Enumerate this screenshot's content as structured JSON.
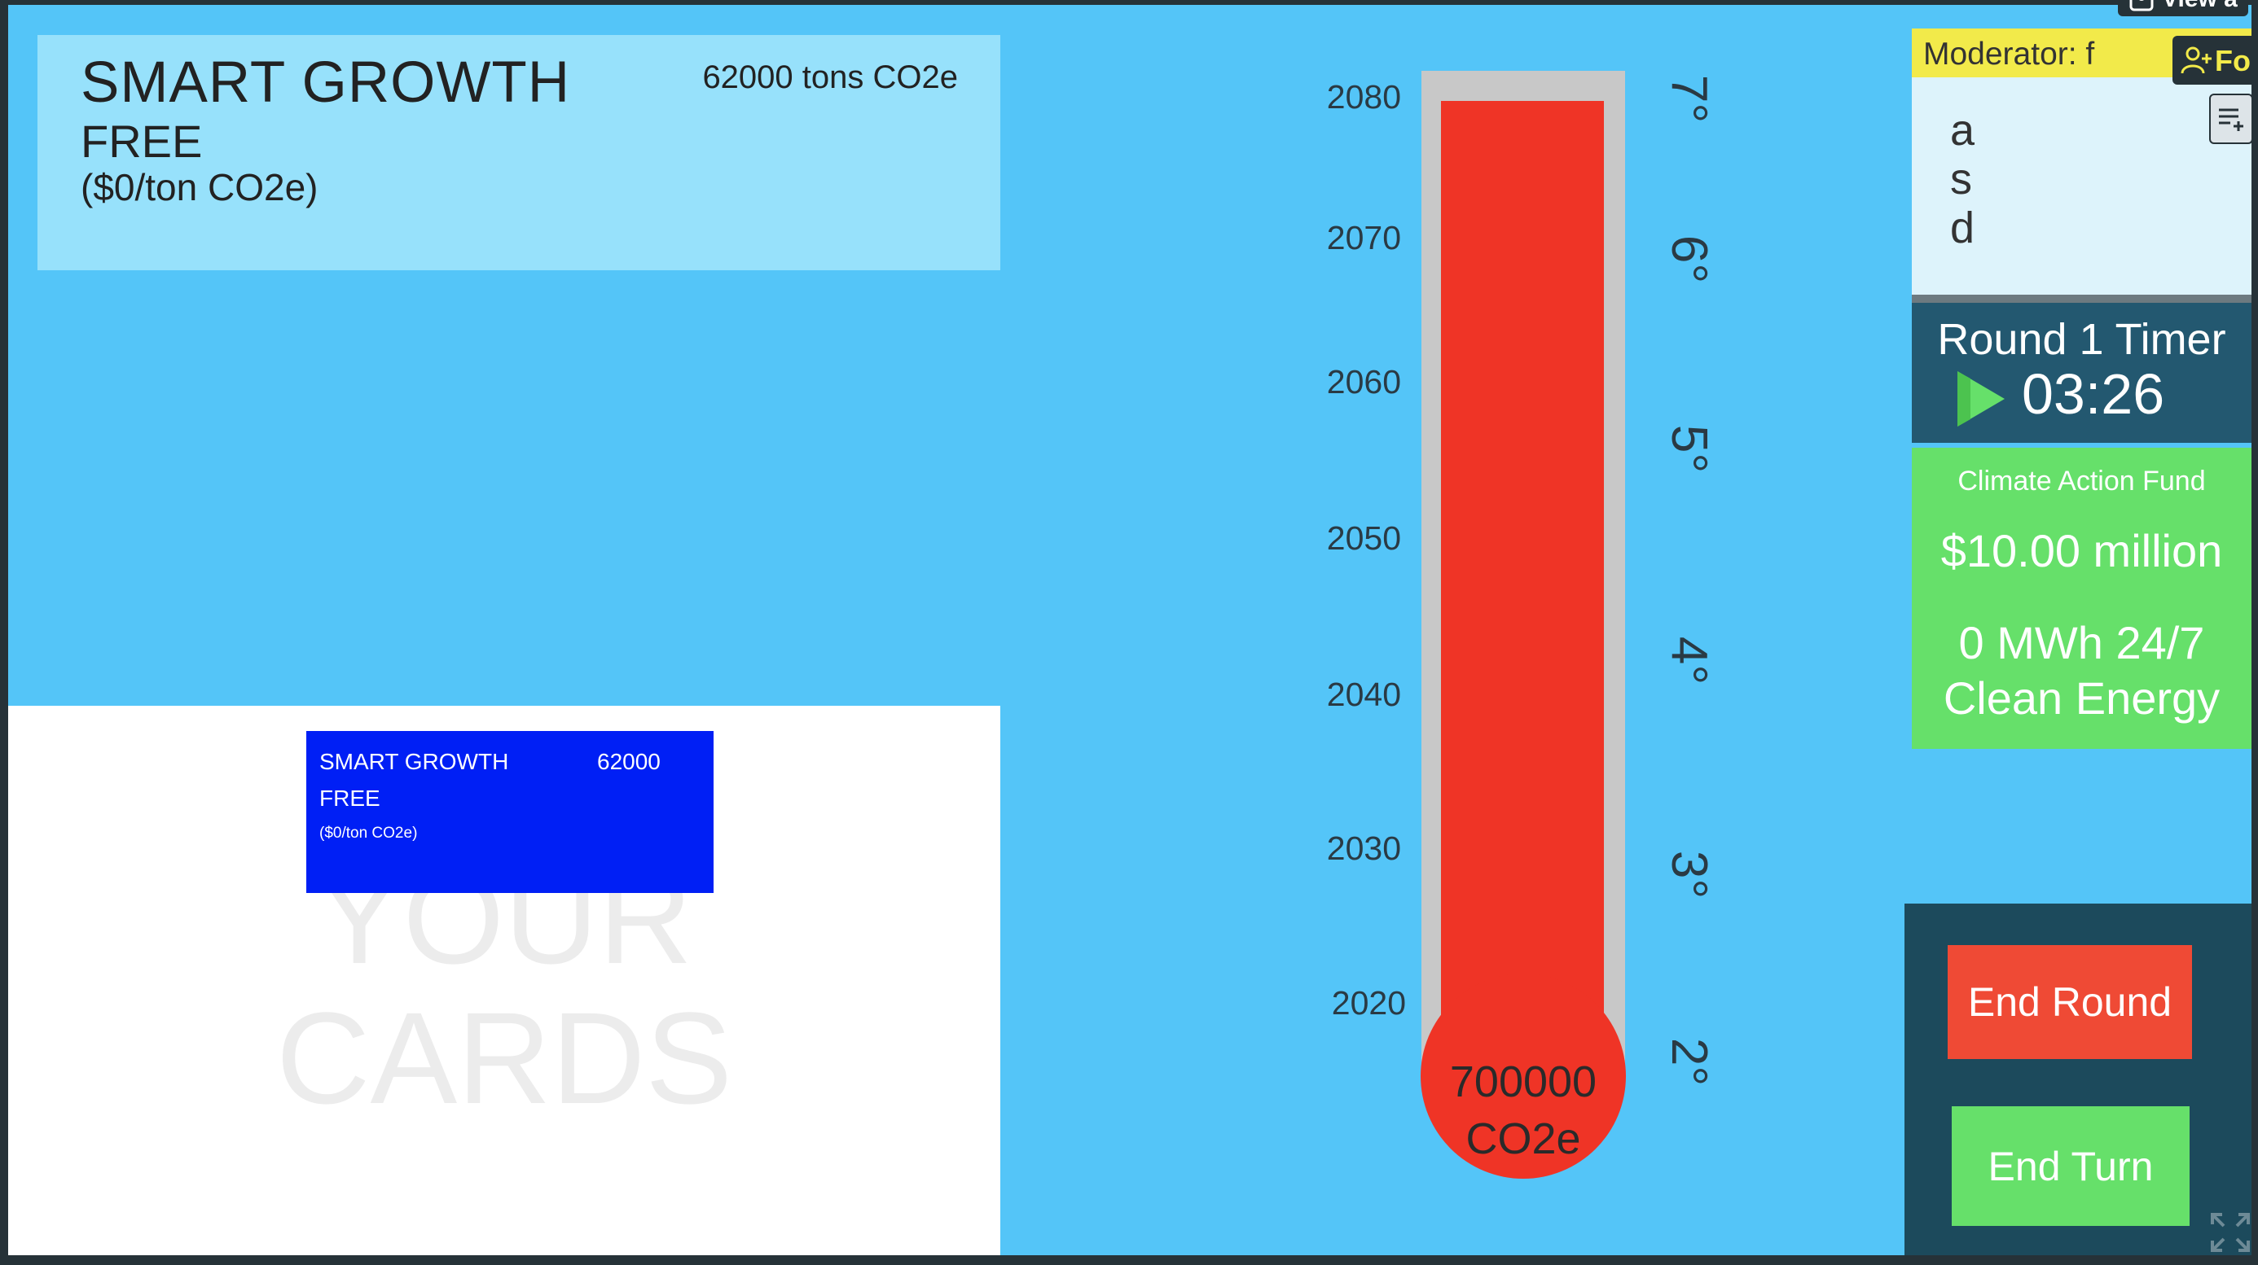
{
  "selected_card": {
    "title": "SMART GROWTH",
    "emissions": "62000 tons CO2e",
    "cost_label": "FREE",
    "price": "($0/ton CO2e)"
  },
  "hand": {
    "watermark_line1": "YOUR",
    "watermark_line2": "CARDS",
    "cards": [
      {
        "title": "SMART GROWTH",
        "value": "62000",
        "cost_label": "FREE",
        "price": "($0/ton CO2e)"
      }
    ]
  },
  "thermometer": {
    "years": [
      "2080",
      "2070",
      "2060",
      "2050",
      "2040",
      "2030",
      "2020"
    ],
    "degrees": [
      "7°",
      "6°",
      "5°",
      "4°",
      "3°",
      "2°"
    ],
    "bulb_line1": "700000",
    "bulb_line2": "CO2e",
    "fill_fraction": 0.97
  },
  "moderator": {
    "label": "Moderator: f",
    "follow_label": "Fol",
    "view_label": "View a"
  },
  "notes": {
    "text": "a\ns\nd"
  },
  "timer": {
    "label": "Round 1 Timer",
    "time": "03:26"
  },
  "fund": {
    "label": "Climate Action Fund",
    "amount": "$10.00 million",
    "energy_line1": "0 MWh 24/7",
    "energy_line2": "Clean Energy"
  },
  "buttons": {
    "end_round": "End Round",
    "end_turn": "End Turn"
  },
  "icons": [
    "person-icon",
    "add-person-icon",
    "notes-menu-icon",
    "play-icon",
    "fullscreen-icon"
  ],
  "colors": {
    "background": "#54c5f8",
    "card_light": "#97e1fb",
    "card_blue": "#001ff5",
    "thermo_red": "#ef3426",
    "fund_green": "#66e06a",
    "timer_teal": "#235870",
    "moderator_yellow": "#f2ea4a"
  }
}
